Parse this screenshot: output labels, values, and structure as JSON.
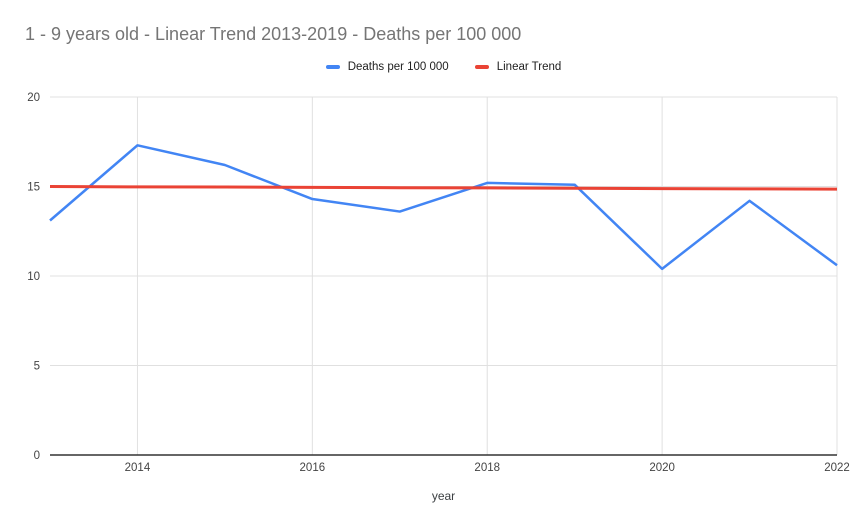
{
  "style": {
    "background": "#ffffff",
    "title_color": "#757575",
    "grid_color": "#e0e0e0",
    "axis_line_color": "#333333",
    "tick_text_color": "#444444",
    "legend_text_color": "#212121"
  },
  "chart_data": {
    "type": "line",
    "title": "1 - 9 years old - Linear Trend 2013-2019 - Deaths per 100 000",
    "xlabel": "year",
    "ylabel": "",
    "x": [
      2013,
      2014,
      2015,
      2016,
      2017,
      2018,
      2019,
      2020,
      2021,
      2022
    ],
    "series": [
      {
        "name": "Deaths per 100 000",
        "color": "#4285f4",
        "values": [
          13.1,
          17.3,
          16.2,
          14.3,
          13.6,
          15.2,
          15.1,
          10.4,
          14.2,
          10.6
        ]
      },
      {
        "name": "Linear Trend",
        "color": "#ea4335",
        "values": [
          15.0,
          14.98,
          14.97,
          14.95,
          14.93,
          14.92,
          14.9,
          14.88,
          14.87,
          14.85
        ]
      }
    ],
    "xlim": [
      2013,
      2022
    ],
    "ylim": [
      0,
      20
    ],
    "x_ticks": [
      2014,
      2016,
      2018,
      2020,
      2022
    ],
    "y_ticks": [
      0,
      5,
      10,
      15,
      20
    ],
    "grid": true,
    "legend_position": "top"
  }
}
